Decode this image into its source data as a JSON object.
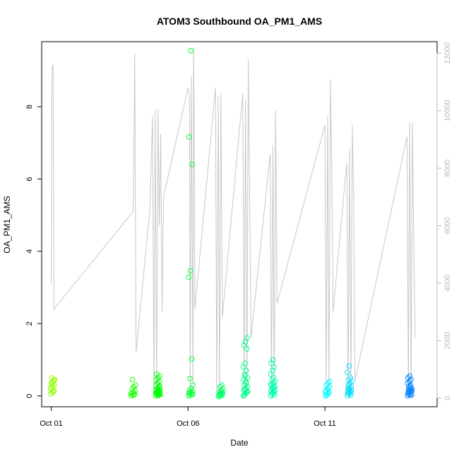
{
  "chart_data": {
    "type": "scatter",
    "title": "ATOM3 Southbound OA_PM1_AMS",
    "xlabel": "Date",
    "ylabel": "OA_PM1_AMS",
    "x_ticks": [
      {
        "day": 1,
        "label": "Oct 01"
      },
      {
        "day": 6,
        "label": "Oct 06"
      },
      {
        "day": 11,
        "label": "Oct 11"
      }
    ],
    "x_range_days": [
      0.65,
      15.1
    ],
    "y_left": {
      "range": [
        -0.3,
        9.8
      ],
      "ticks": [
        0,
        2,
        4,
        6,
        8
      ]
    },
    "y_right": {
      "range": [
        -300,
        12400
      ],
      "ticks": [
        0,
        2000,
        4000,
        6000,
        8000,
        10000,
        12000
      ],
      "color": "#b8b8b8"
    },
    "grid": false,
    "legend": "none",
    "line_color": "#c8c8c8",
    "altitude_trace": [
      [
        1.0,
        4000
      ],
      [
        1.03,
        11500
      ],
      [
        1.07,
        11600
      ],
      [
        1.1,
        3100
      ],
      [
        4.0,
        6500
      ],
      [
        4.05,
        12000
      ],
      [
        4.08,
        6000
      ],
      [
        4.1,
        1600
      ],
      [
        4.6,
        6500
      ],
      [
        4.7,
        9800
      ],
      [
        4.75,
        200
      ],
      [
        4.8,
        10000
      ],
      [
        4.85,
        200
      ],
      [
        4.9,
        10050
      ],
      [
        4.95,
        6000
      ],
      [
        5.0,
        9200
      ],
      [
        5.05,
        3000
      ],
      [
        5.1,
        7000
      ],
      [
        6.0,
        10800
      ],
      [
        6.05,
        10500
      ],
      [
        6.08,
        200
      ],
      [
        6.12,
        11200
      ],
      [
        6.18,
        300
      ],
      [
        6.2,
        12200
      ],
      [
        6.22,
        10000
      ],
      [
        6.25,
        3100
      ],
      [
        7.0,
        10800
      ],
      [
        7.05,
        200
      ],
      [
        7.1,
        10500
      ],
      [
        7.15,
        200
      ],
      [
        7.2,
        10600
      ],
      [
        7.25,
        2800
      ],
      [
        8.0,
        10600
      ],
      [
        8.05,
        300
      ],
      [
        8.1,
        10400
      ],
      [
        8.15,
        200
      ],
      [
        8.2,
        11800
      ],
      [
        8.25,
        7000
      ],
      [
        8.3,
        2100
      ],
      [
        9.0,
        8500
      ],
      [
        9.05,
        200
      ],
      [
        9.1,
        8800
      ],
      [
        9.15,
        200
      ],
      [
        9.2,
        10000
      ],
      [
        9.25,
        3300
      ],
      [
        11.0,
        9500
      ],
      [
        11.05,
        200
      ],
      [
        11.1,
        9800
      ],
      [
        11.15,
        200
      ],
      [
        11.2,
        11100
      ],
      [
        11.25,
        8000
      ],
      [
        11.3,
        3000
      ],
      [
        11.8,
        8200
      ],
      [
        11.85,
        200
      ],
      [
        11.9,
        8700
      ],
      [
        11.95,
        200
      ],
      [
        12.0,
        9500
      ],
      [
        12.05,
        7000
      ],
      [
        12.1,
        600
      ],
      [
        14.0,
        9100
      ],
      [
        14.05,
        200
      ],
      [
        14.1,
        9600
      ],
      [
        14.15,
        200
      ],
      [
        14.2,
        9600
      ],
      [
        14.25,
        5000
      ],
      [
        14.3,
        2100
      ]
    ],
    "points": [
      {
        "day": 1.05,
        "values": [
          0.05,
          0.1,
          0.15,
          0.2,
          0.25,
          0.3,
          0.35,
          0.4,
          0.45,
          0.5,
          0.12,
          0.22,
          0.33,
          0.44
        ]
      },
      {
        "day": 4.0,
        "values": [
          0.0,
          0.02,
          0.05,
          0.08,
          0.1,
          0.15,
          0.2,
          0.25,
          0.3,
          0.45,
          0.03,
          0.07
        ]
      },
      {
        "day": 4.9,
        "values": [
          0.0,
          0.02,
          0.04,
          0.06,
          0.08,
          0.1,
          0.12,
          0.15,
          0.18,
          0.2,
          0.25,
          0.3,
          0.35,
          0.4,
          0.45,
          0.5,
          0.55,
          0.6,
          0.01,
          0.03,
          0.05,
          0.07,
          0.09,
          0.11,
          0.14,
          0.17,
          0.22,
          0.28
        ]
      },
      {
        "day": 6.1,
        "values": [
          0.0,
          0.02,
          0.05,
          0.08,
          0.1,
          0.12,
          0.15,
          0.2,
          0.3,
          0.48,
          1.02,
          3.28,
          3.46,
          6.4,
          7.16,
          9.55,
          0.04,
          0.07
        ]
      },
      {
        "day": 7.2,
        "values": [
          -0.02,
          0.0,
          0.02,
          0.05,
          0.08,
          0.1,
          0.12,
          0.15,
          0.2,
          0.25,
          0.3,
          0.01,
          0.04,
          0.06
        ]
      },
      {
        "day": 8.1,
        "values": [
          0.0,
          0.05,
          0.1,
          0.15,
          0.2,
          0.25,
          0.3,
          0.4,
          0.5,
          0.6,
          0.7,
          0.8,
          0.9,
          1.3,
          1.4,
          1.5,
          1.6,
          0.02,
          0.08,
          0.12,
          0.18,
          0.35,
          0.45,
          0.55
        ]
      },
      {
        "day": 9.1,
        "values": [
          0.0,
          0.05,
          0.1,
          0.15,
          0.2,
          0.25,
          0.3,
          0.35,
          0.4,
          0.45,
          0.5,
          0.6,
          0.7,
          0.8,
          0.9,
          1.0,
          0.02,
          0.07,
          0.12,
          0.17,
          0.22,
          0.27,
          0.32
        ]
      },
      {
        "day": 11.1,
        "values": [
          0.0,
          0.05,
          0.1,
          0.15,
          0.2,
          0.25,
          0.3,
          0.35,
          0.4,
          0.02,
          0.07,
          0.12
        ]
      },
      {
        "day": 11.9,
        "values": [
          0.0,
          0.05,
          0.1,
          0.15,
          0.2,
          0.25,
          0.3,
          0.35,
          0.4,
          0.45,
          0.5,
          0.65,
          0.83,
          0.02,
          0.07,
          0.12,
          0.17,
          0.22
        ]
      },
      {
        "day": 14.1,
        "values": [
          0.0,
          0.03,
          0.05,
          0.08,
          0.1,
          0.12,
          0.15,
          0.18,
          0.2,
          0.25,
          0.3,
          0.35,
          0.4,
          0.45,
          0.5,
          0.55,
          0.02,
          0.06,
          0.11,
          0.14,
          0.19,
          0.24
        ]
      }
    ]
  }
}
